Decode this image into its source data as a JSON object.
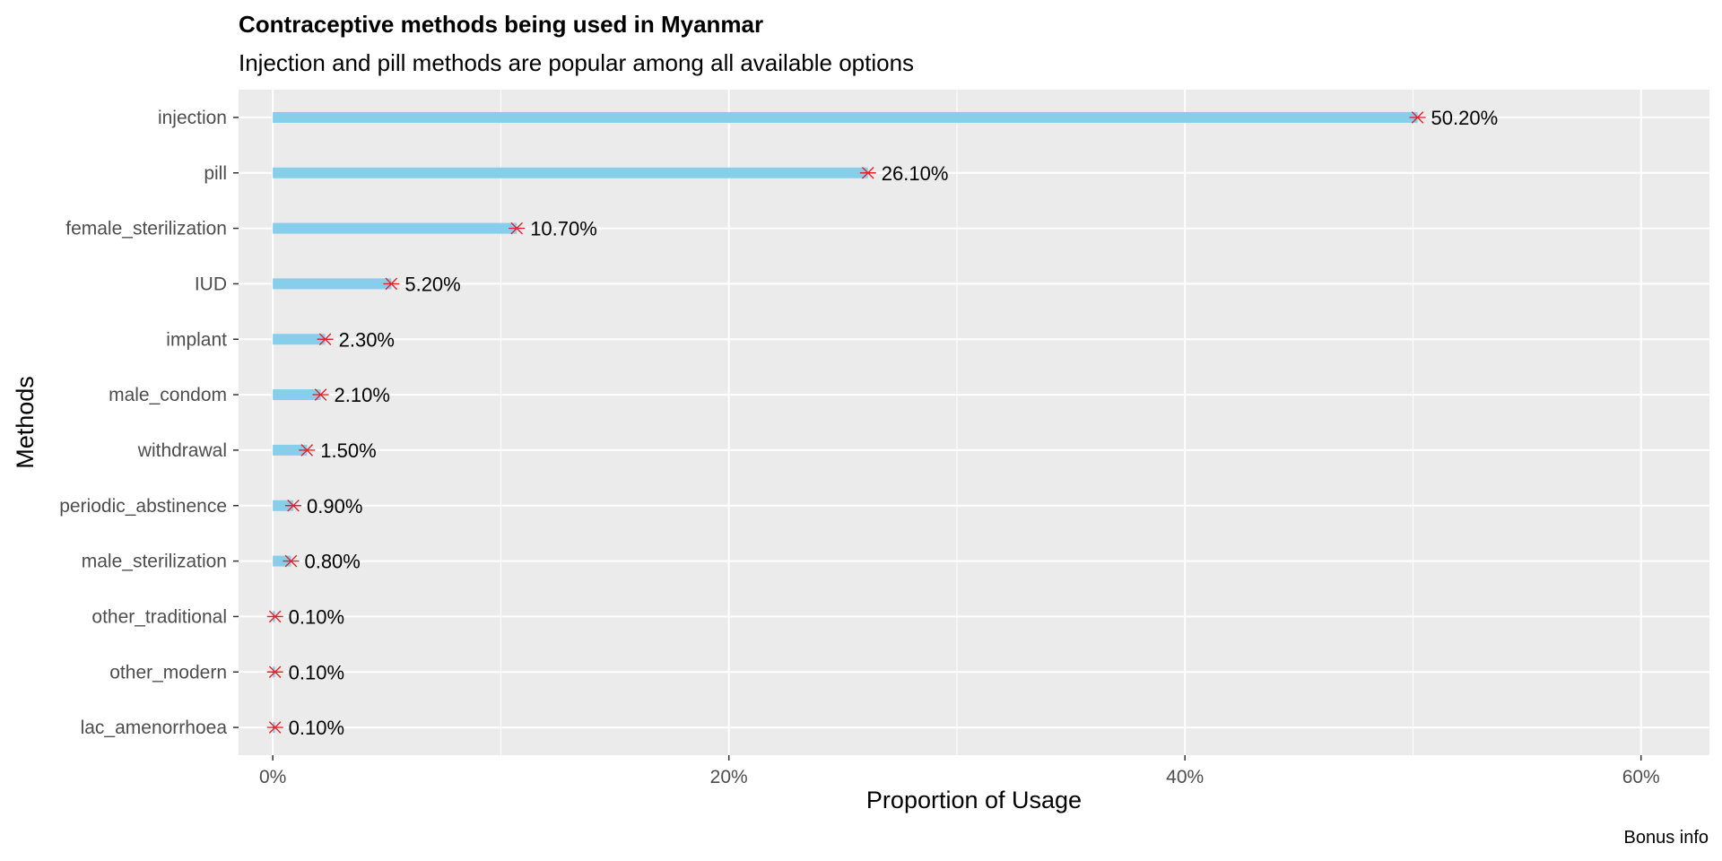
{
  "chart_data": {
    "type": "bar",
    "orientation": "horizontal",
    "title": "Contraceptive methods being used in Myanmar",
    "subtitle": "Injection and pill methods are popular among all available options",
    "xlabel": "Proportion of Usage",
    "ylabel": "Methods",
    "caption": "Bonus info",
    "xlim": [
      -1.5,
      63
    ],
    "xticks": [
      0,
      20,
      40,
      60
    ],
    "xtick_labels": [
      "0%",
      "20%",
      "40%",
      "60%"
    ],
    "grid": true,
    "categories": [
      "injection",
      "pill",
      "female_sterilization",
      "IUD",
      "implant",
      "male_condom",
      "withdrawal",
      "periodic_abstinence",
      "male_sterilization",
      "other_traditional",
      "other_modern",
      "lac_amenorrhoea"
    ],
    "values": [
      50.2,
      26.1,
      10.7,
      5.2,
      2.3,
      2.1,
      1.5,
      0.9,
      0.8,
      0.1,
      0.1,
      0.1
    ],
    "labels": [
      "50.20%",
      "26.10%",
      "10.70%",
      "5.20%",
      "2.30%",
      "2.10%",
      "1.50%",
      "0.90%",
      "0.80%",
      "0.10%",
      "0.10%",
      "0.10%"
    ],
    "colors": {
      "bar": "#87ceeb",
      "marker": "#e8202a",
      "panel": "#ebebeb",
      "grid": "#ffffff"
    }
  }
}
